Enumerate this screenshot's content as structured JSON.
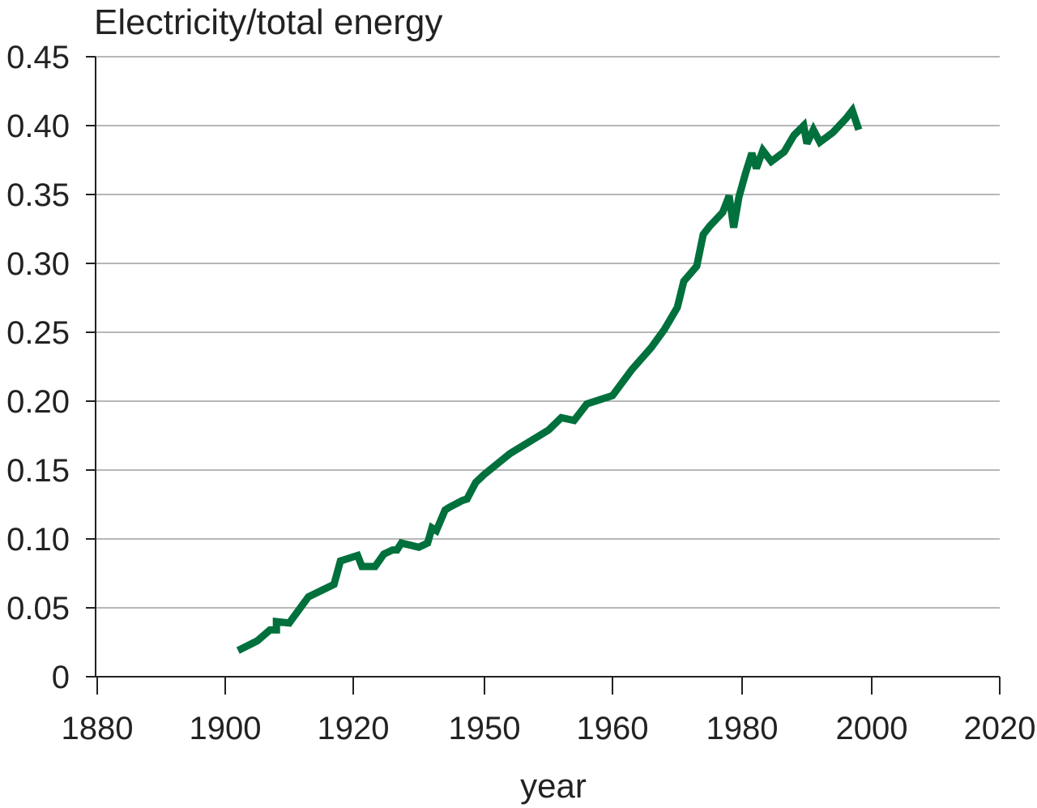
{
  "chart_data": {
    "type": "line",
    "title": "",
    "ylabel": "Electricity/total energy",
    "xlabel": "year",
    "x_ticks": [
      "1880",
      "1900",
      "1920",
      "1950",
      "1960",
      "1980",
      "2000",
      "2020"
    ],
    "y_ticks": [
      "0",
      "0.05",
      "0.10",
      "0.15",
      "0.20",
      "0.25",
      "0.30",
      "0.35",
      "0.40",
      "0.45"
    ],
    "ylim": [
      0,
      0.45
    ],
    "grid": "horizontal",
    "legend": "none",
    "series": [
      {
        "color": "#00703c",
        "points": [
          [
            1902,
            0.019
          ],
          [
            1905,
            0.026
          ],
          [
            1907,
            0.034
          ],
          [
            1908,
            0.034
          ],
          [
            1908,
            0.04
          ],
          [
            1910,
            0.039
          ],
          [
            1913,
            0.058
          ],
          [
            1917,
            0.067
          ],
          [
            1918,
            0.084
          ],
          [
            1921,
            0.088
          ],
          [
            1922,
            0.08
          ],
          [
            1925,
            0.08
          ],
          [
            1927,
            0.089
          ],
          [
            1929,
            0.092
          ],
          [
            1930,
            0.092
          ],
          [
            1931,
            0.097
          ],
          [
            1935,
            0.094
          ],
          [
            1937,
            0.097
          ],
          [
            1938,
            0.108
          ],
          [
            1939,
            0.106
          ],
          [
            1941,
            0.121
          ],
          [
            1942,
            0.123
          ],
          [
            1945,
            0.128
          ],
          [
            1946,
            0.129
          ],
          [
            1948,
            0.141
          ],
          [
            1950,
            0.147
          ],
          [
            1952,
            0.162
          ],
          [
            1955,
            0.179
          ],
          [
            1956,
            0.188
          ],
          [
            1957,
            0.186
          ],
          [
            1958,
            0.198
          ],
          [
            1960,
            0.204
          ],
          [
            1963,
            0.223
          ],
          [
            1966,
            0.239
          ],
          [
            1968,
            0.252
          ],
          [
            1970,
            0.268
          ],
          [
            1971,
            0.287
          ],
          [
            1973,
            0.298
          ],
          [
            1974,
            0.321
          ],
          [
            1975,
            0.327
          ],
          [
            1977,
            0.337
          ],
          [
            1978,
            0.349
          ],
          [
            1978.7,
            0.326
          ],
          [
            1979.5,
            0.348
          ],
          [
            1980.5,
            0.365
          ],
          [
            1981.5,
            0.38
          ],
          [
            1982.2,
            0.369
          ],
          [
            1983.2,
            0.382
          ],
          [
            1984.5,
            0.374
          ],
          [
            1986.5,
            0.381
          ],
          [
            1988,
            0.393
          ],
          [
            1989.5,
            0.4
          ],
          [
            1990,
            0.387
          ],
          [
            1991,
            0.397
          ],
          [
            1992,
            0.388
          ],
          [
            1994,
            0.395
          ],
          [
            1996,
            0.405
          ],
          [
            1997,
            0.411
          ],
          [
            1998,
            0.397
          ]
        ]
      }
    ]
  }
}
